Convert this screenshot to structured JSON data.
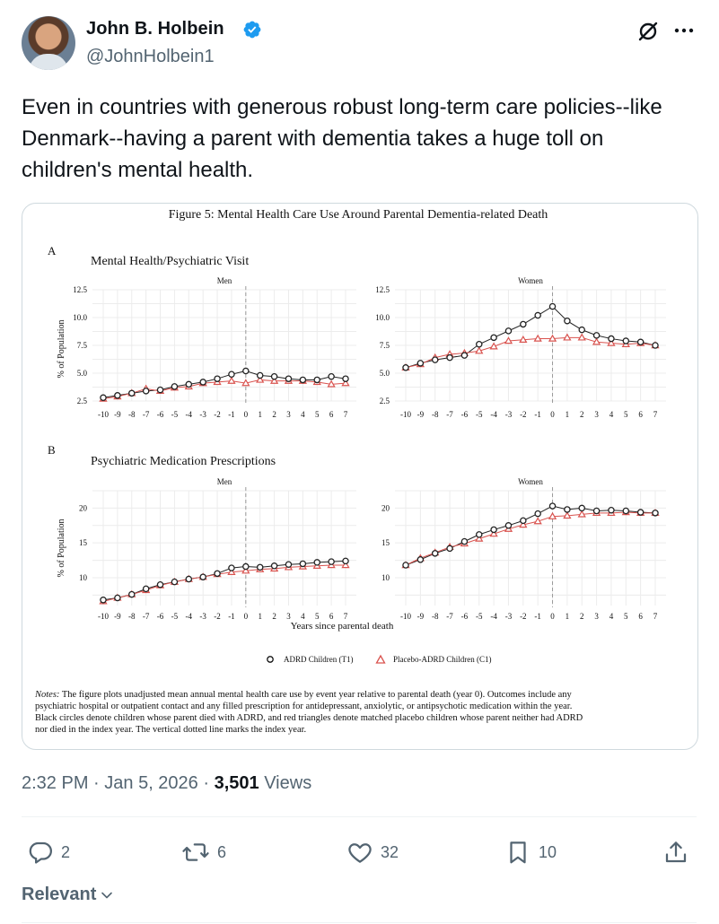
{
  "author": {
    "name": "John B. Holbein",
    "handle": "@JohnHolbein1"
  },
  "tweet": {
    "text": "Even in countries with generous robust long-term care policies--like Denmark--having a parent with dementia takes a huge toll on children's mental health."
  },
  "meta": {
    "time": "2:32 PM",
    "date": "Jan 5, 2026",
    "views_count": "3,501",
    "views_label": "Views"
  },
  "actions": {
    "replies": "2",
    "reposts": "6",
    "likes": "32",
    "bookmarks": "10"
  },
  "sort": {
    "label": "Relevant"
  },
  "figure": {
    "title": "Figure 5: Mental Health Care Use Around Parental Dementia-related Death",
    "panel_a_letter": "A",
    "panel_a_title": "Mental Health/Psychiatric Visit",
    "panel_b_letter": "B",
    "panel_b_title": "Psychiatric Medication Prescriptions",
    "facet_men": "Men",
    "facet_women": "Women",
    "y_label": "% of Population",
    "x_label": "Years since parental death",
    "legend_t1": "ADRD Children (T1)",
    "legend_c1": "Placebo-ADRD Children (C1)",
    "notes_prefix": "Notes:",
    "notes_lines": [
      "The figure plots unadjusted mean annual mental health care use by event year relative to parental death (year 0).  Outcomes include any",
      "psychiatric hospital or outpatient contact and any filled prescription for antidepressant, anxiolytic, or antipsychotic medication within the year.",
      "Black circles denote children whose parent died with ADRD, and red triangles denote matched placebo children whose parent neither had ADRD",
      "nor died in the index year.  The vertical dotted line marks the index year."
    ]
  },
  "chart_data": [
    {
      "type": "line",
      "title": "Mental Health/Psychiatric Visit",
      "facet": "Men",
      "x": [
        -10,
        -9,
        -8,
        -7,
        -6,
        -5,
        -4,
        -3,
        -2,
        -1,
        0,
        1,
        2,
        3,
        4,
        5,
        6,
        7
      ],
      "xlabel": "",
      "ylabel": "% of Population",
      "ylim": [
        2.5,
        12.5
      ],
      "yticks": [
        2.5,
        5.0,
        7.5,
        10.0,
        12.5
      ],
      "series": [
        {
          "name": "ADRD Children (T1)",
          "values": [
            2.8,
            3.0,
            3.2,
            3.4,
            3.5,
            3.8,
            4.0,
            4.2,
            4.5,
            4.9,
            5.2,
            4.8,
            4.7,
            4.5,
            4.4,
            4.4,
            4.7,
            4.5
          ]
        },
        {
          "name": "Placebo-ADRD Children (C1)",
          "values": [
            2.7,
            2.9,
            3.2,
            3.6,
            3.4,
            3.7,
            3.8,
            4.1,
            4.2,
            4.3,
            4.1,
            4.4,
            4.3,
            4.3,
            4.3,
            4.2,
            4.0,
            4.1
          ]
        }
      ]
    },
    {
      "type": "line",
      "title": "Mental Health/Psychiatric Visit",
      "facet": "Women",
      "x": [
        -10,
        -9,
        -8,
        -7,
        -6,
        -5,
        -4,
        -3,
        -2,
        -1,
        0,
        1,
        2,
        3,
        4,
        5,
        6,
        7
      ],
      "xlabel": "",
      "ylabel": "% of Population",
      "ylim": [
        2.5,
        12.5
      ],
      "yticks": [
        2.5,
        5.0,
        7.5,
        10.0,
        12.5
      ],
      "series": [
        {
          "name": "ADRD Children (T1)",
          "values": [
            5.5,
            5.9,
            6.2,
            6.4,
            6.6,
            7.6,
            8.2,
            8.8,
            9.4,
            10.2,
            11.0,
            9.7,
            8.9,
            8.4,
            8.1,
            7.9,
            7.8,
            7.5
          ]
        },
        {
          "name": "Placebo-ADRD Children (C1)",
          "values": [
            5.5,
            5.8,
            6.4,
            6.7,
            6.8,
            7.0,
            7.4,
            7.9,
            8.0,
            8.1,
            8.1,
            8.2,
            8.2,
            7.8,
            7.7,
            7.6,
            7.7,
            7.5
          ]
        }
      ]
    },
    {
      "type": "line",
      "title": "Psychiatric Medication Prescriptions",
      "facet": "Men",
      "x": [
        -10,
        -9,
        -8,
        -7,
        -6,
        -5,
        -4,
        -3,
        -2,
        -1,
        0,
        1,
        2,
        3,
        4,
        5,
        6,
        7
      ],
      "xlabel": "Years since parental death",
      "ylabel": "% of Population",
      "ylim": [
        6,
        22.5
      ],
      "yticks": [
        10,
        15,
        20
      ],
      "series": [
        {
          "name": "ADRD Children (T1)",
          "values": [
            6.8,
            7.1,
            7.6,
            8.4,
            9.0,
            9.4,
            9.8,
            10.1,
            10.6,
            11.4,
            11.6,
            11.5,
            11.7,
            11.9,
            12.0,
            12.2,
            12.3,
            12.4
          ]
        },
        {
          "name": "Placebo-ADRD Children (C1)",
          "values": [
            6.6,
            7.1,
            7.6,
            8.2,
            8.9,
            9.4,
            9.8,
            10.1,
            10.5,
            10.8,
            11.0,
            11.2,
            11.3,
            11.5,
            11.6,
            11.7,
            11.8,
            11.8
          ]
        }
      ]
    },
    {
      "type": "line",
      "title": "Psychiatric Medication Prescriptions",
      "facet": "Women",
      "x": [
        -10,
        -9,
        -8,
        -7,
        -6,
        -5,
        -4,
        -3,
        -2,
        -1,
        0,
        1,
        2,
        3,
        4,
        5,
        6,
        7
      ],
      "xlabel": "Years since parental death",
      "ylabel": "% of Population",
      "ylim": [
        6,
        22.5
      ],
      "yticks": [
        10,
        15,
        20
      ],
      "series": [
        {
          "name": "ADRD Children (T1)",
          "values": [
            11.8,
            12.6,
            13.5,
            14.2,
            15.2,
            16.2,
            16.9,
            17.5,
            18.2,
            19.2,
            20.3,
            19.8,
            20.0,
            19.6,
            19.7,
            19.6,
            19.4,
            19.3
          ]
        },
        {
          "name": "Placebo-ADRD Children (C1)",
          "values": [
            11.8,
            12.8,
            13.6,
            14.4,
            14.9,
            15.6,
            16.3,
            17.0,
            17.6,
            18.1,
            18.8,
            18.9,
            19.1,
            19.3,
            19.3,
            19.4,
            19.3,
            19.3
          ]
        }
      ]
    }
  ]
}
